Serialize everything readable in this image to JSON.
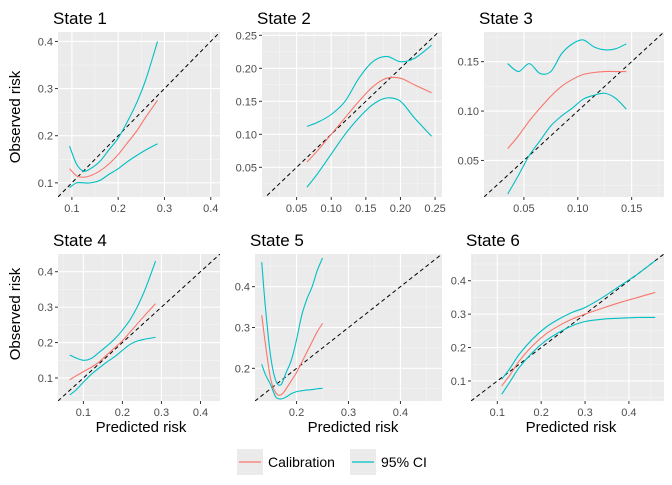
{
  "figure": {
    "ylabel": "Observed risk",
    "xlabel": "Predicted risk",
    "colors": {
      "panel_bg": "#EBEBEB",
      "grid_major": "#FFFFFF",
      "grid_minor": "#F5F5F5",
      "calibration": "#F8766D",
      "ci": "#00BFC4",
      "diagonal": "#000000"
    },
    "legend": {
      "placement": "bottom",
      "items": [
        {
          "label": "Calibration",
          "color": "#F8766D"
        },
        {
          "label": "95% CI",
          "color": "#00BFC4"
        }
      ]
    }
  },
  "chart_data": [
    {
      "type": "line",
      "title": "State 1",
      "xlim": [
        0.07,
        0.42
      ],
      "ylim": [
        0.07,
        0.42
      ],
      "xticks": [
        0.1,
        0.2,
        0.3,
        0.4
      ],
      "xtick_labels": [
        "0.1",
        "0.2",
        "0.3",
        "0.4"
      ],
      "yticks": [
        0.1,
        0.2,
        0.3,
        0.4
      ],
      "ytick_labels": [
        "0.1",
        "0.2",
        "0.3",
        "0.4"
      ],
      "series": [
        {
          "name": "Calibration",
          "x": [
            0.095,
            0.11,
            0.125,
            0.14,
            0.16,
            0.18,
            0.2,
            0.22,
            0.24,
            0.26,
            0.285
          ],
          "y": [
            0.13,
            0.115,
            0.112,
            0.115,
            0.125,
            0.14,
            0.16,
            0.185,
            0.21,
            0.24,
            0.275
          ]
        },
        {
          "name": "95% CI",
          "x": [
            0.095,
            0.11,
            0.125,
            0.14,
            0.16,
            0.18,
            0.2,
            0.22,
            0.24,
            0.26,
            0.285
          ],
          "y": [
            0.178,
            0.14,
            0.125,
            0.13,
            0.145,
            0.17,
            0.195,
            0.23,
            0.27,
            0.32,
            0.4
          ]
        },
        {
          "name": "95% CI",
          "x": [
            0.095,
            0.11,
            0.125,
            0.14,
            0.16,
            0.18,
            0.2,
            0.22,
            0.24,
            0.26,
            0.285
          ],
          "y": [
            0.09,
            0.1,
            0.1,
            0.1,
            0.105,
            0.118,
            0.13,
            0.145,
            0.158,
            0.17,
            0.183
          ]
        }
      ]
    },
    {
      "type": "line",
      "title": "State 2",
      "xlim": [
        0.0,
        0.26
      ],
      "ylim": [
        0.005,
        0.255
      ],
      "xticks": [
        0.05,
        0.1,
        0.15,
        0.2,
        0.25
      ],
      "xtick_labels": [
        "0.05",
        "0.10",
        "0.15",
        "0.20",
        "0.25"
      ],
      "yticks": [
        0.05,
        0.1,
        0.15,
        0.2,
        0.25
      ],
      "ytick_labels": [
        "0.05",
        "0.10",
        "0.15",
        "0.20",
        "0.25"
      ],
      "series": [
        {
          "name": "Calibration",
          "x": [
            0.065,
            0.08,
            0.1,
            0.12,
            0.14,
            0.16,
            0.18,
            0.2,
            0.22,
            0.245
          ],
          "y": [
            0.058,
            0.075,
            0.1,
            0.125,
            0.15,
            0.172,
            0.185,
            0.185,
            0.175,
            0.163
          ]
        },
        {
          "name": "95% CI",
          "x": [
            0.065,
            0.08,
            0.1,
            0.12,
            0.14,
            0.16,
            0.18,
            0.2,
            0.22,
            0.245
          ],
          "y": [
            0.112,
            0.118,
            0.13,
            0.15,
            0.185,
            0.21,
            0.218,
            0.21,
            0.215,
            0.235
          ]
        },
        {
          "name": "95% CI",
          "x": [
            0.065,
            0.08,
            0.1,
            0.12,
            0.14,
            0.16,
            0.18,
            0.2,
            0.22,
            0.245
          ],
          "y": [
            0.02,
            0.04,
            0.07,
            0.1,
            0.125,
            0.145,
            0.155,
            0.15,
            0.125,
            0.097
          ]
        }
      ]
    },
    {
      "type": "line",
      "title": "State 3",
      "xlim": [
        0.013,
        0.18
      ],
      "ylim": [
        0.013,
        0.18
      ],
      "xticks": [
        0.05,
        0.1,
        0.15
      ],
      "xtick_labels": [
        "0.05",
        "0.10",
        "0.15"
      ],
      "yticks": [
        0.05,
        0.1,
        0.15
      ],
      "ytick_labels": [
        "0.05",
        "0.10",
        "0.15"
      ],
      "series": [
        {
          "name": "Calibration",
          "x": [
            0.035,
            0.045,
            0.055,
            0.065,
            0.075,
            0.085,
            0.095,
            0.105,
            0.115,
            0.125,
            0.135,
            0.145
          ],
          "y": [
            0.062,
            0.075,
            0.09,
            0.103,
            0.115,
            0.125,
            0.132,
            0.137,
            0.139,
            0.14,
            0.14,
            0.14
          ]
        },
        {
          "name": "95% CI",
          "x": [
            0.035,
            0.045,
            0.055,
            0.065,
            0.075,
            0.085,
            0.095,
            0.105,
            0.115,
            0.125,
            0.135,
            0.145
          ],
          "y": [
            0.148,
            0.14,
            0.148,
            0.138,
            0.14,
            0.158,
            0.168,
            0.172,
            0.165,
            0.162,
            0.163,
            0.168
          ]
        },
        {
          "name": "95% CI",
          "x": [
            0.035,
            0.045,
            0.055,
            0.065,
            0.075,
            0.085,
            0.095,
            0.105,
            0.115,
            0.125,
            0.135,
            0.145
          ],
          "y": [
            0.016,
            0.035,
            0.055,
            0.07,
            0.085,
            0.095,
            0.103,
            0.112,
            0.116,
            0.118,
            0.113,
            0.102
          ]
        }
      ]
    },
    {
      "type": "line",
      "title": "State 4",
      "xlim": [
        0.035,
        0.45
      ],
      "ylim": [
        0.035,
        0.45
      ],
      "xticks": [
        0.1,
        0.2,
        0.3,
        0.4
      ],
      "xtick_labels": [
        "0.1",
        "0.2",
        "0.3",
        "0.4"
      ],
      "yticks": [
        0.1,
        0.2,
        0.3,
        0.4
      ],
      "ytick_labels": [
        "0.1",
        "0.2",
        "0.3",
        "0.4"
      ],
      "series": [
        {
          "name": "Calibration",
          "x": [
            0.065,
            0.08,
            0.1,
            0.12,
            0.14,
            0.16,
            0.18,
            0.2,
            0.22,
            0.24,
            0.26,
            0.285
          ],
          "y": [
            0.095,
            0.105,
            0.118,
            0.13,
            0.145,
            0.165,
            0.185,
            0.205,
            0.23,
            0.255,
            0.28,
            0.31
          ]
        },
        {
          "name": "95% CI",
          "x": [
            0.065,
            0.08,
            0.1,
            0.12,
            0.14,
            0.16,
            0.18,
            0.2,
            0.22,
            0.24,
            0.26,
            0.285
          ],
          "y": [
            0.165,
            0.157,
            0.15,
            0.155,
            0.172,
            0.19,
            0.21,
            0.235,
            0.265,
            0.305,
            0.355,
            0.43
          ]
        },
        {
          "name": "95% CI",
          "x": [
            0.065,
            0.08,
            0.1,
            0.12,
            0.14,
            0.16,
            0.18,
            0.2,
            0.22,
            0.24,
            0.26,
            0.285
          ],
          "y": [
            0.052,
            0.065,
            0.088,
            0.11,
            0.128,
            0.145,
            0.16,
            0.178,
            0.195,
            0.205,
            0.21,
            0.215
          ]
        }
      ]
    },
    {
      "type": "line",
      "title": "State 5",
      "xlim": [
        0.12,
        0.48
      ],
      "ylim": [
        0.12,
        0.48
      ],
      "xticks": [
        0.2,
        0.3,
        0.4
      ],
      "xtick_labels": [
        "0.2",
        "0.3",
        "0.4"
      ],
      "yticks": [
        0.2,
        0.3,
        0.4
      ],
      "ytick_labels": [
        "0.2",
        "0.3",
        "0.4"
      ],
      "series": [
        {
          "name": "Calibration",
          "x": [
            0.133,
            0.14,
            0.15,
            0.16,
            0.17,
            0.18,
            0.19,
            0.2,
            0.21,
            0.22,
            0.23,
            0.24,
            0.25
          ],
          "y": [
            0.33,
            0.26,
            0.175,
            0.14,
            0.135,
            0.15,
            0.17,
            0.19,
            0.215,
            0.24,
            0.265,
            0.29,
            0.31
          ]
        },
        {
          "name": "95% CI",
          "x": [
            0.133,
            0.14,
            0.15,
            0.16,
            0.17,
            0.18,
            0.19,
            0.2,
            0.21,
            0.22,
            0.23,
            0.24,
            0.25
          ],
          "y": [
            0.46,
            0.35,
            0.23,
            0.17,
            0.16,
            0.19,
            0.22,
            0.27,
            0.33,
            0.37,
            0.4,
            0.44,
            0.47
          ]
        },
        {
          "name": "95% CI",
          "x": [
            0.133,
            0.14,
            0.15,
            0.16,
            0.17,
            0.18,
            0.19,
            0.2,
            0.21,
            0.22,
            0.23,
            0.24,
            0.25
          ],
          "y": [
            0.21,
            0.185,
            0.16,
            0.13,
            0.125,
            0.13,
            0.138,
            0.143,
            0.145,
            0.147,
            0.148,
            0.15,
            0.151
          ]
        }
      ]
    },
    {
      "type": "line",
      "title": "State 6",
      "xlim": [
        0.04,
        0.48
      ],
      "ylim": [
        0.04,
        0.48
      ],
      "xticks": [
        0.1,
        0.2,
        0.3,
        0.4
      ],
      "xtick_labels": [
        "0.1",
        "0.2",
        "0.3",
        "0.4"
      ],
      "yticks": [
        0.1,
        0.2,
        0.3,
        0.4
      ],
      "ytick_labels": [
        "0.1",
        "0.2",
        "0.3",
        "0.4"
      ],
      "series": [
        {
          "name": "Calibration",
          "x": [
            0.11,
            0.13,
            0.15,
            0.18,
            0.21,
            0.24,
            0.27,
            0.3,
            0.34,
            0.38,
            0.42,
            0.46
          ],
          "y": [
            0.085,
            0.12,
            0.16,
            0.205,
            0.24,
            0.265,
            0.285,
            0.3,
            0.318,
            0.335,
            0.35,
            0.365
          ]
        },
        {
          "name": "95% CI",
          "x": [
            0.11,
            0.13,
            0.15,
            0.18,
            0.21,
            0.24,
            0.27,
            0.3,
            0.34,
            0.38,
            0.42,
            0.46
          ],
          "y": [
            0.105,
            0.14,
            0.18,
            0.225,
            0.26,
            0.285,
            0.305,
            0.32,
            0.35,
            0.385,
            0.42,
            0.46
          ]
        },
        {
          "name": "95% CI",
          "x": [
            0.11,
            0.13,
            0.15,
            0.18,
            0.21,
            0.24,
            0.27,
            0.3,
            0.34,
            0.38,
            0.42,
            0.46
          ],
          "y": [
            0.06,
            0.1,
            0.14,
            0.185,
            0.22,
            0.245,
            0.265,
            0.278,
            0.285,
            0.288,
            0.29,
            0.29
          ]
        }
      ]
    }
  ]
}
